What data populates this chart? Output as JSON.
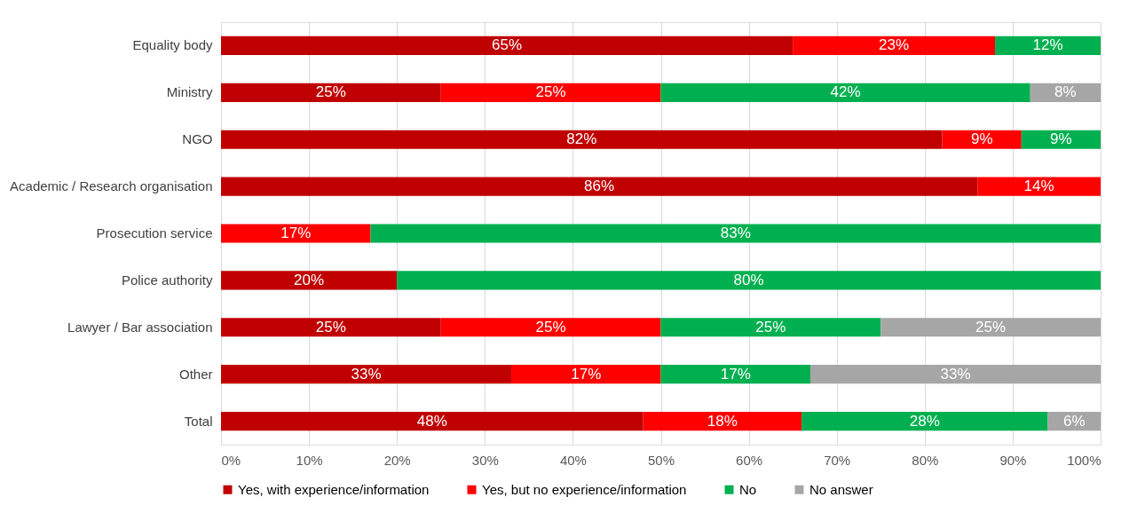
{
  "chart_data": {
    "type": "bar",
    "orientation": "horizontal",
    "stacked": true,
    "categories": [
      "Equality body",
      "Ministry",
      "NGO",
      "Academic / Research organisation",
      "Prosecution service",
      "Police authority",
      "Lawyer / Bar association",
      "Other",
      "Total"
    ],
    "series": [
      {
        "name": "Yes, with experience/information",
        "color": "#c00000",
        "values": [
          65,
          25,
          82,
          86,
          null,
          20,
          25,
          33,
          48
        ],
        "value_labels": [
          "65%",
          "25%",
          "82%",
          "86%",
          null,
          "20%",
          "25%",
          "33%",
          "48%"
        ]
      },
      {
        "name": "Yes, but no experience/information",
        "color": "#ff0000",
        "values": [
          23,
          25,
          9,
          14,
          17,
          null,
          25,
          17,
          18
        ],
        "value_labels": [
          "23%",
          "25%",
          "9%",
          "14%",
          "17%",
          null,
          "25%",
          "17%",
          "18%"
        ]
      },
      {
        "name": "No",
        "color": "#00b050",
        "values": [
          12,
          42,
          9,
          null,
          83,
          80,
          25,
          17,
          28
        ],
        "value_labels": [
          "12%",
          "42%",
          "9%",
          null,
          "83%",
          "80%",
          "25%",
          "17%",
          "28%"
        ]
      },
      {
        "name": "No answer",
        "color": "#a6a6a6",
        "values": [
          null,
          8,
          null,
          null,
          null,
          null,
          25,
          33,
          6
        ],
        "value_labels": [
          null,
          "8%",
          null,
          null,
          null,
          null,
          "25%",
          "33%",
          "6%"
        ]
      }
    ],
    "xlim": [
      0,
      100
    ],
    "xticks": [
      {
        "value": 0,
        "label": "0%"
      },
      {
        "value": 10,
        "label": "10%"
      },
      {
        "value": 20,
        "label": "20%"
      },
      {
        "value": 30,
        "label": "30%"
      },
      {
        "value": 40,
        "label": "40%"
      },
      {
        "value": 50,
        "label": "50%"
      },
      {
        "value": 60,
        "label": "60%"
      },
      {
        "value": 70,
        "label": "70%"
      },
      {
        "value": 80,
        "label": "80%"
      },
      {
        "value": 90,
        "label": "90%"
      },
      {
        "value": 100,
        "label": "100%"
      }
    ],
    "grid": "x",
    "legend": "bottom"
  }
}
